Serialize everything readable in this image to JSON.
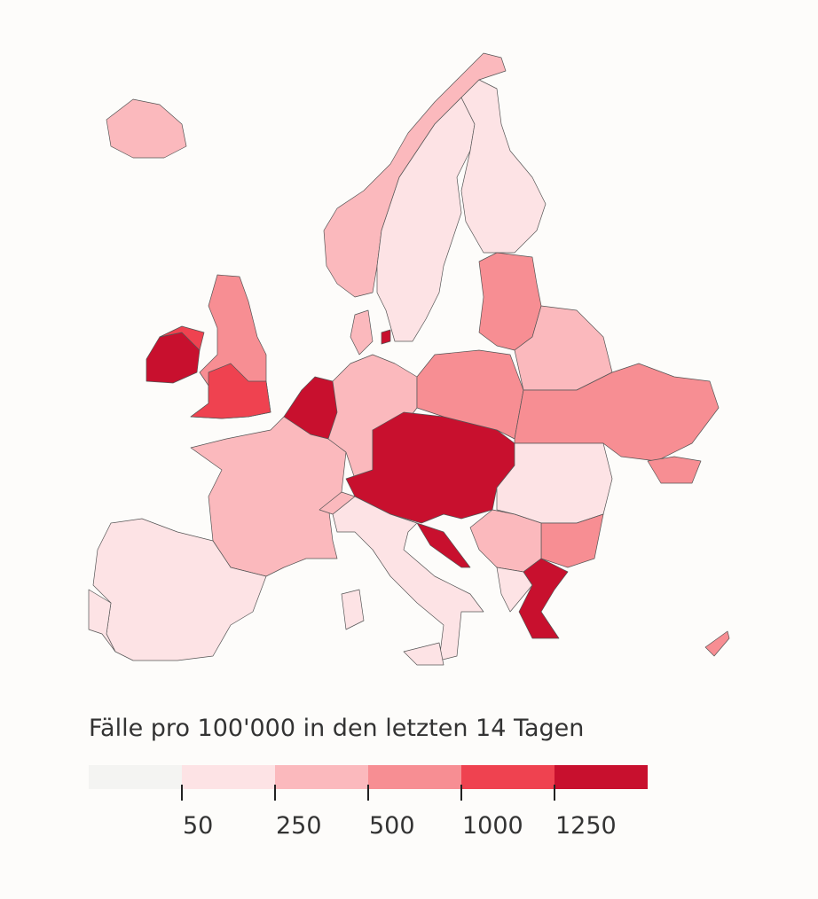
{
  "legend": {
    "title": "Fälle pro 100'000 in den letzten 14 Tagen",
    "colors": [
      "#f4f4f2",
      "#fde3e5",
      "#fbb9bd",
      "#f78e93",
      "#ef4250",
      "#c8102e"
    ],
    "ticks": [
      50,
      250,
      500,
      1000,
      1250
    ]
  }
}
